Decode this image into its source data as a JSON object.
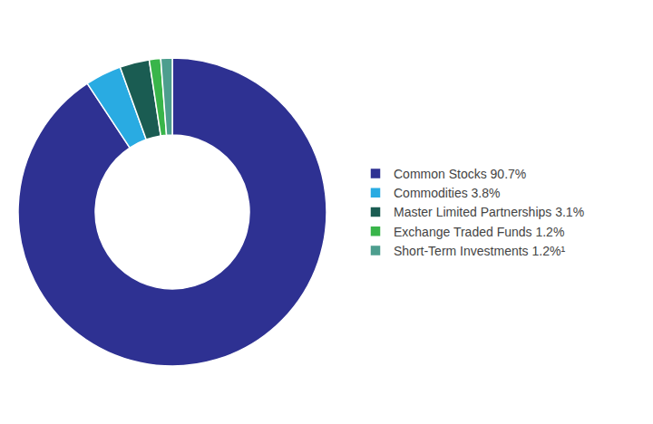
{
  "chart_data": {
    "type": "donut",
    "categories": [
      "Common Stocks 90.7%",
      "Commodities 3.8%",
      "Master Limited Partnerships 3.1%",
      "Exchange Traded Funds 1.2%",
      "Short-Term Investments 1.2%¹"
    ],
    "values": [
      90.7,
      3.8,
      3.1,
      1.2,
      1.2
    ],
    "colors": [
      "#2E3192",
      "#29ABE2",
      "#1A5C52",
      "#39B54A",
      "#4D9E8E"
    ],
    "legend": "right"
  }
}
